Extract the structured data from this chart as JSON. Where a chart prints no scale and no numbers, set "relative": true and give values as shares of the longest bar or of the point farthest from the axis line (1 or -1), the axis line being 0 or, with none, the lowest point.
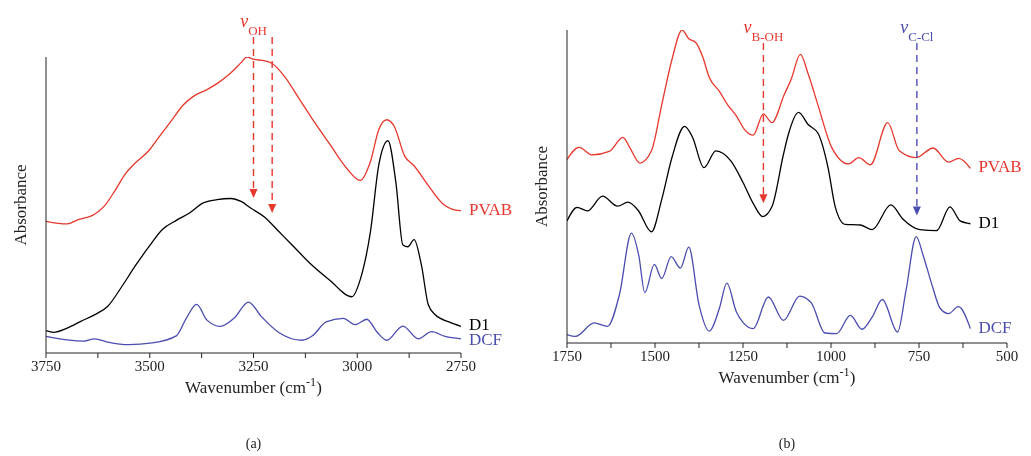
{
  "chart_data": [
    {
      "type": "line",
      "relative": true,
      "xlabel": "Wavenumber (cm$^{-1}$)",
      "ylabel": "Absorbance",
      "xlim": [
        3750,
        2750
      ],
      "xticks": [
        3750,
        {
          "value": 3625,
          "label": null
        },
        3500,
        {
          "value": 3375,
          "label": null
        },
        3250,
        {
          "value": 3125,
          "label": null
        },
        3000,
        {
          "value": 2875,
          "label": null
        },
        2750
      ],
      "legend": false,
      "grid": false,
      "series": [
        {
          "name": "PVAB",
          "color": "#e8372c",
          "x": [
            3750,
            3699,
            3674,
            3633,
            3609,
            3584,
            3560,
            3535,
            3502,
            3477,
            3445,
            3420,
            3395,
            3362,
            3338,
            3305,
            3280,
            3266,
            3252,
            3223,
            3206,
            3174,
            3141,
            3108,
            3067,
            3026,
            2993,
            2968,
            2948,
            2929,
            2911,
            2886,
            2862,
            2829,
            2796,
            2763,
            2750
          ],
          "values": [
            0.445,
            0.436,
            0.45,
            0.469,
            0.497,
            0.548,
            0.603,
            0.642,
            0.684,
            0.731,
            0.79,
            0.837,
            0.867,
            0.89,
            0.91,
            0.946,
            0.981,
            1.0,
            0.993,
            0.987,
            0.979,
            0.932,
            0.861,
            0.79,
            0.707,
            0.625,
            0.583,
            0.648,
            0.755,
            0.788,
            0.766,
            0.666,
            0.631,
            0.566,
            0.507,
            0.483,
            0.481
          ]
        },
        {
          "name": "D1",
          "color": "#000000",
          "x": [
            3750,
            3732,
            3699,
            3666,
            3633,
            3601,
            3568,
            3535,
            3502,
            3469,
            3436,
            3404,
            3371,
            3338,
            3305,
            3280,
            3256,
            3223,
            3190,
            3157,
            3116,
            3067,
            3013,
            2993,
            2968,
            2948,
            2926,
            2907,
            2890,
            2878,
            2863,
            2845,
            2829,
            2812,
            2779,
            2750
          ],
          "values": [
            0.076,
            0.07,
            0.084,
            0.107,
            0.129,
            0.158,
            0.223,
            0.294,
            0.359,
            0.418,
            0.448,
            0.473,
            0.507,
            0.518,
            0.522,
            0.512,
            0.489,
            0.459,
            0.412,
            0.365,
            0.306,
            0.247,
            0.19,
            0.247,
            0.412,
            0.636,
            0.717,
            0.577,
            0.365,
            0.359,
            0.383,
            0.294,
            0.164,
            0.129,
            0.105,
            0.09
          ]
        },
        {
          "name": "DCF",
          "color": "#4a4db0",
          "x": [
            3750,
            3699,
            3658,
            3633,
            3601,
            3551,
            3494,
            3436,
            3412,
            3387,
            3362,
            3330,
            3297,
            3262,
            3231,
            3190,
            3133,
            3108,
            3075,
            3034,
            3005,
            2977,
            2952,
            2929,
            2890,
            2853,
            2821,
            2788,
            2750
          ],
          "values": [
            0.056,
            0.044,
            0.04,
            0.048,
            0.037,
            0.028,
            0.034,
            0.058,
            0.117,
            0.164,
            0.111,
            0.09,
            0.117,
            0.172,
            0.123,
            0.07,
            0.043,
            0.058,
            0.105,
            0.117,
            0.096,
            0.114,
            0.07,
            0.043,
            0.091,
            0.048,
            0.072,
            0.056,
            0.048
          ]
        }
      ],
      "ref_lines": [
        {
          "axis": "x",
          "value": 3250,
          "label": "ν$_{OH}$",
          "color": "#e8372c",
          "line_style": "dashed"
        },
        {
          "axis": "x",
          "value": 3205,
          "color": "#e8372c",
          "line_style": "dashed"
        }
      ],
      "annotations": [
        "(a)"
      ]
    },
    {
      "type": "line",
      "relative": true,
      "xlabel": "Wavenumber (cm$^{-1}$)",
      "ylabel": "Absorbance",
      "xlim": [
        1750,
        500
      ],
      "xticks": [
        1750,
        {
          "value": 1625,
          "label": null
        },
        1500,
        {
          "value": 1375,
          "label": null
        },
        1250,
        {
          "value": 1125,
          "label": null
        },
        1000,
        {
          "value": 875,
          "label": null
        },
        750,
        {
          "value": 625,
          "label": null
        },
        500
      ],
      "legend": false,
      "grid": false,
      "series": [
        {
          "name": "PVAB",
          "color": "#e8372c",
          "x": [
            1750,
            1716,
            1678,
            1630,
            1591,
            1572,
            1543,
            1510,
            1481,
            1452,
            1423,
            1404,
            1385,
            1365,
            1346,
            1317,
            1293,
            1269,
            1245,
            1221,
            1192,
            1168,
            1133,
            1113,
            1087,
            1065,
            1037,
            998,
            950,
            921,
            888,
            839,
            806,
            758,
            710,
            666,
            637,
            604
          ],
          "values": [
            0.586,
            0.625,
            0.601,
            0.612,
            0.657,
            0.625,
            0.575,
            0.614,
            0.76,
            0.905,
            1.0,
            0.972,
            0.961,
            0.916,
            0.849,
            0.804,
            0.76,
            0.726,
            0.681,
            0.664,
            0.732,
            0.704,
            0.793,
            0.843,
            0.922,
            0.86,
            0.76,
            0.625,
            0.572,
            0.592,
            0.569,
            0.704,
            0.614,
            0.592,
            0.623,
            0.578,
            0.59,
            0.558
          ]
        },
        {
          "name": "D1",
          "color": "#000000",
          "x": [
            1750,
            1721,
            1692,
            1649,
            1606,
            1577,
            1548,
            1510,
            1481,
            1452,
            1416,
            1394,
            1361,
            1327,
            1284,
            1250,
            1221,
            1194,
            1168,
            1135,
            1123,
            1092,
            1065,
            1037,
            1008,
            988,
            960,
            916,
            883,
            830,
            796,
            748,
            700,
            662,
            633,
            604
          ],
          "values": [
            0.39,
            0.433,
            0.422,
            0.469,
            0.437,
            0.45,
            0.424,
            0.355,
            0.458,
            0.592,
            0.692,
            0.659,
            0.56,
            0.614,
            0.581,
            0.513,
            0.446,
            0.404,
            0.435,
            0.603,
            0.659,
            0.737,
            0.698,
            0.67,
            0.558,
            0.435,
            0.379,
            0.377,
            0.362,
            0.441,
            0.396,
            0.362,
            0.359,
            0.435,
            0.39,
            0.381
          ]
        },
        {
          "name": "DCF",
          "color": "#4a4db0",
          "x": [
            1750,
            1726,
            1673,
            1635,
            1601,
            1567,
            1546,
            1529,
            1502,
            1481,
            1454,
            1428,
            1404,
            1375,
            1346,
            1317,
            1296,
            1269,
            1250,
            1221,
            1178,
            1135,
            1089,
            1056,
            1017,
            984,
            945,
            912,
            883,
            854,
            811,
            787,
            758,
            738,
            714,
            690,
            666,
            638,
            604
          ],
          "values": [
            0.027,
            0.021,
            0.064,
            0.053,
            0.155,
            0.351,
            0.279,
            0.161,
            0.251,
            0.206,
            0.276,
            0.239,
            0.306,
            0.122,
            0.038,
            0.111,
            0.191,
            0.1,
            0.066,
            0.046,
            0.147,
            0.072,
            0.15,
            0.128,
            0.032,
            0.03,
            0.088,
            0.044,
            0.083,
            0.139,
            0.035,
            0.167,
            0.34,
            0.279,
            0.189,
            0.111,
            0.094,
            0.116,
            0.046
          ]
        }
      ],
      "ref_lines": [
        {
          "axis": "x",
          "value": 1192,
          "label": "ν$_{B-OH}$",
          "color": "#e8372c",
          "line_style": "dashed"
        },
        {
          "axis": "x",
          "value": 756,
          "label": "ν$_{C-Cl}$",
          "color": "#4a4db0",
          "line_style": "dashed"
        }
      ],
      "annotations": [
        "(b)"
      ]
    }
  ]
}
